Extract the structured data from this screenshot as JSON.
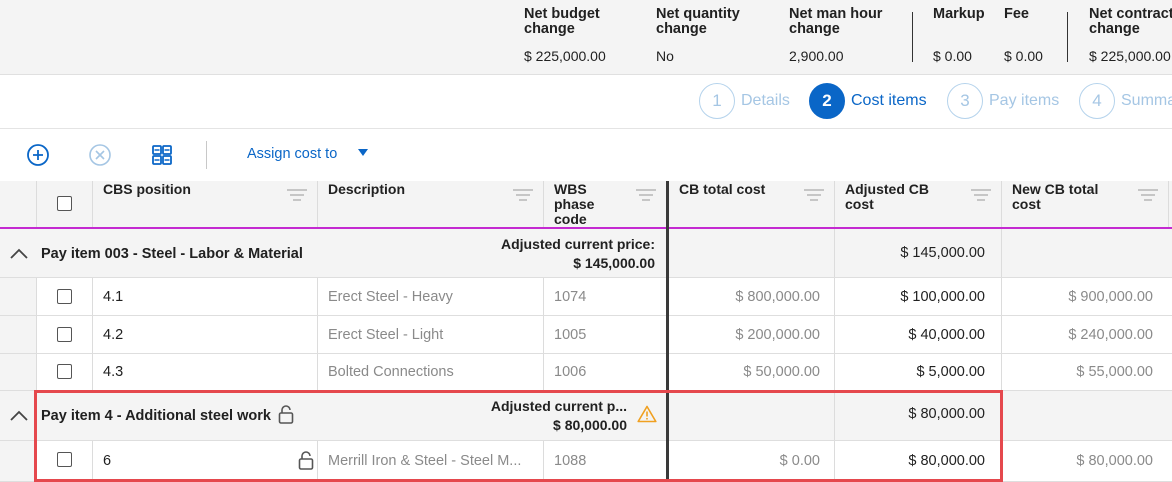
{
  "summary": {
    "net_budget": {
      "label": "Net budget change",
      "value": "$ 225,000.00"
    },
    "net_quantity": {
      "label": "Net quantity change",
      "value": "No"
    },
    "net_man_hour": {
      "label": "Net man hour change",
      "value": "2,900.00"
    },
    "markup": {
      "label": "Markup",
      "value": "$ 0.00"
    },
    "fee": {
      "label": "Fee",
      "value": "$ 0.00"
    },
    "net_contract": {
      "label": "Net contract change",
      "value": "$ 225,000.00"
    }
  },
  "stepper": [
    {
      "num": "1",
      "label": "Details",
      "active": false
    },
    {
      "num": "2",
      "label": "Cost items",
      "active": true
    },
    {
      "num": "3",
      "label": "Pay items",
      "active": false
    },
    {
      "num": "4",
      "label": "Summary",
      "active": false
    }
  ],
  "toolbar": {
    "add_icon": "plus-circle-icon",
    "remove_icon": "x-circle-icon",
    "grid_icon": "grid-select-icon",
    "assign_label": "Assign cost to",
    "assign_caret_icon": "caret-down-icon"
  },
  "columns": {
    "cbs": "CBS position",
    "description": "Description",
    "wbs": "WBS phase code",
    "cb_total": "CB total cost",
    "adjusted": "Adjusted CB cost",
    "new_total": "New CB total cost"
  },
  "groups": [
    {
      "title": "Pay item 003 - Steel - Labor & Material",
      "price_label": "Adjusted current price:",
      "price_value": "$ 145,000.00",
      "adjusted": "$ 145,000.00",
      "items": [
        {
          "cbs": "4.1",
          "description": "Erect Steel - Heavy",
          "wbs": "1074",
          "cb_total": "$ 800,000.00",
          "adjusted": "$ 100,000.00",
          "new_total": "$ 900,000.00"
        },
        {
          "cbs": "4.2",
          "description": "Erect Steel - Light",
          "wbs": "1005",
          "cb_total": "$ 200,000.00",
          "adjusted": "$ 40,000.00",
          "new_total": "$ 240,000.00"
        },
        {
          "cbs": "4.3",
          "description": "Bolted Connections",
          "wbs": "1006",
          "cb_total": "$ 50,000.00",
          "adjusted": "$ 5,000.00",
          "new_total": "$ 55,000.00"
        }
      ]
    },
    {
      "title": "Pay item 4 - Additional steel work",
      "price_label": "Adjusted current p...",
      "price_value": "$ 80,000.00",
      "adjusted": "$ 80,000.00",
      "items": [
        {
          "cbs": "6",
          "description": "Merrill Iron & Steel - Steel M...",
          "wbs": "1088",
          "cb_total": "$ 0.00",
          "adjusted": "$ 80,000.00",
          "new_total": "$ 80,000.00"
        }
      ]
    }
  ],
  "colors": {
    "accent": "#0a66c7",
    "highlight": "#e5484d",
    "header_rule": "#c42ad1",
    "warning": "#f0a020"
  }
}
